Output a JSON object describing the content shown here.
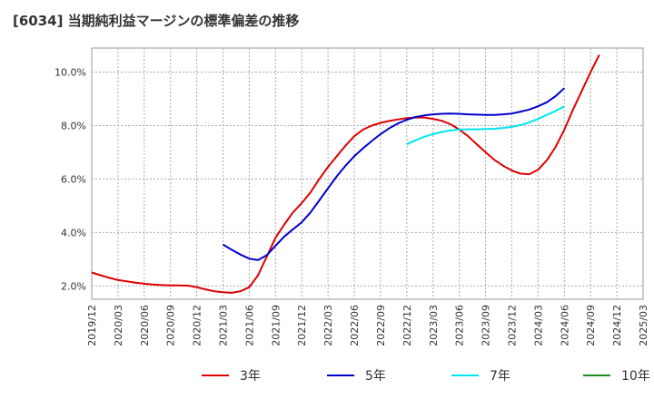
{
  "chart_data": {
    "type": "line",
    "title": "[6034]  当期純利益マージンの標準偏差の推移",
    "xlabel": "",
    "ylabel": "",
    "x_ticks": [
      "2019/12",
      "2020/03",
      "2020/06",
      "2020/09",
      "2020/12",
      "2021/03",
      "2021/06",
      "2021/09",
      "2021/12",
      "2022/03",
      "2022/06",
      "2022/09",
      "2022/12",
      "2023/03",
      "2023/06",
      "2023/09",
      "2023/12",
      "2024/03",
      "2024/06",
      "2024/09",
      "2024/12",
      "2025/03"
    ],
    "y_ticks": [
      "2.0%",
      "4.0%",
      "6.0%",
      "8.0%",
      "10.0%"
    ],
    "ylim": [
      1.5,
      10.9
    ],
    "grid": true,
    "legend_position": "bottom",
    "series": [
      {
        "name": "3年",
        "color": "#dd0000",
        "points": [
          [
            "2019/12",
            2.5
          ],
          [
            "2020/01",
            2.4
          ],
          [
            "2020/02",
            2.3
          ],
          [
            "2020/03",
            2.22
          ],
          [
            "2020/04",
            2.17
          ],
          [
            "2020/05",
            2.12
          ],
          [
            "2020/06",
            2.08
          ],
          [
            "2020/07",
            2.05
          ],
          [
            "2020/08",
            2.03
          ],
          [
            "2020/09",
            2.02
          ],
          [
            "2020/10",
            2.02
          ],
          [
            "2020/11",
            2.01
          ],
          [
            "2020/12",
            1.95
          ],
          [
            "2021/01",
            1.87
          ],
          [
            "2021/02",
            1.8
          ],
          [
            "2021/03",
            1.76
          ],
          [
            "2021/04",
            1.74
          ],
          [
            "2021/05",
            1.8
          ],
          [
            "2021/06",
            1.95
          ],
          [
            "2021/07",
            2.4
          ],
          [
            "2021/08",
            3.1
          ],
          [
            "2021/09",
            3.8
          ],
          [
            "2021/10",
            4.3
          ],
          [
            "2021/11",
            4.75
          ],
          [
            "2021/12",
            5.1
          ],
          [
            "2022/01",
            5.5
          ],
          [
            "2022/02",
            6.0
          ],
          [
            "2022/03",
            6.45
          ],
          [
            "2022/04",
            6.85
          ],
          [
            "2022/05",
            7.25
          ],
          [
            "2022/06",
            7.6
          ],
          [
            "2022/07",
            7.85
          ],
          [
            "2022/08",
            8.0
          ],
          [
            "2022/09",
            8.1
          ],
          [
            "2022/10",
            8.17
          ],
          [
            "2022/11",
            8.23
          ],
          [
            "2022/12",
            8.28
          ],
          [
            "2023/01",
            8.3
          ],
          [
            "2023/02",
            8.3
          ],
          [
            "2023/03",
            8.25
          ],
          [
            "2023/04",
            8.18
          ],
          [
            "2023/05",
            8.05
          ],
          [
            "2023/06",
            7.85
          ],
          [
            "2023/07",
            7.6
          ],
          [
            "2023/08",
            7.3
          ],
          [
            "2023/09",
            7.0
          ],
          [
            "2023/10",
            6.72
          ],
          [
            "2023/11",
            6.5
          ],
          [
            "2023/12",
            6.32
          ],
          [
            "2024/01",
            6.2
          ],
          [
            "2024/02",
            6.18
          ],
          [
            "2024/03",
            6.35
          ],
          [
            "2024/04",
            6.7
          ],
          [
            "2024/05",
            7.2
          ],
          [
            "2024/06",
            7.85
          ],
          [
            "2024/07",
            8.6
          ],
          [
            "2024/08",
            9.3
          ],
          [
            "2024/09",
            10.0
          ],
          [
            "2024/10",
            10.65
          ]
        ]
      },
      {
        "name": "5年",
        "color": "#0000cc",
        "points": [
          [
            "2021/03",
            3.55
          ],
          [
            "2021/04",
            3.35
          ],
          [
            "2021/05",
            3.17
          ],
          [
            "2021/06",
            3.02
          ],
          [
            "2021/07",
            2.97
          ],
          [
            "2021/08",
            3.15
          ],
          [
            "2021/09",
            3.5
          ],
          [
            "2021/10",
            3.85
          ],
          [
            "2021/11",
            4.12
          ],
          [
            "2021/12",
            4.38
          ],
          [
            "2022/01",
            4.75
          ],
          [
            "2022/02",
            5.2
          ],
          [
            "2022/03",
            5.65
          ],
          [
            "2022/04",
            6.1
          ],
          [
            "2022/05",
            6.5
          ],
          [
            "2022/06",
            6.85
          ],
          [
            "2022/07",
            7.15
          ],
          [
            "2022/08",
            7.42
          ],
          [
            "2022/09",
            7.68
          ],
          [
            "2022/10",
            7.9
          ],
          [
            "2022/11",
            8.08
          ],
          [
            "2022/12",
            8.22
          ],
          [
            "2023/01",
            8.32
          ],
          [
            "2023/02",
            8.38
          ],
          [
            "2023/03",
            8.42
          ],
          [
            "2023/04",
            8.44
          ],
          [
            "2023/05",
            8.45
          ],
          [
            "2023/06",
            8.44
          ],
          [
            "2023/07",
            8.42
          ],
          [
            "2023/08",
            8.41
          ],
          [
            "2023/09",
            8.4
          ],
          [
            "2023/10",
            8.4
          ],
          [
            "2023/11",
            8.42
          ],
          [
            "2023/12",
            8.45
          ],
          [
            "2024/01",
            8.52
          ],
          [
            "2024/02",
            8.6
          ],
          [
            "2024/03",
            8.72
          ],
          [
            "2024/04",
            8.87
          ],
          [
            "2024/05",
            9.1
          ],
          [
            "2024/06",
            9.4
          ]
        ]
      },
      {
        "name": "7年",
        "color": "#00e5ee",
        "points": [
          [
            "2022/12",
            7.3
          ],
          [
            "2023/01",
            7.45
          ],
          [
            "2023/02",
            7.58
          ],
          [
            "2023/03",
            7.68
          ],
          [
            "2023/04",
            7.76
          ],
          [
            "2023/05",
            7.82
          ],
          [
            "2023/06",
            7.85
          ],
          [
            "2023/07",
            7.86
          ],
          [
            "2023/08",
            7.86
          ],
          [
            "2023/09",
            7.87
          ],
          [
            "2023/10",
            7.88
          ],
          [
            "2023/11",
            7.91
          ],
          [
            "2023/12",
            7.95
          ],
          [
            "2024/01",
            8.02
          ],
          [
            "2024/02",
            8.12
          ],
          [
            "2024/03",
            8.25
          ],
          [
            "2024/04",
            8.4
          ],
          [
            "2024/05",
            8.55
          ],
          [
            "2024/06",
            8.72
          ]
        ]
      },
      {
        "name": "10年",
        "color": "#228b22",
        "points": []
      }
    ]
  }
}
